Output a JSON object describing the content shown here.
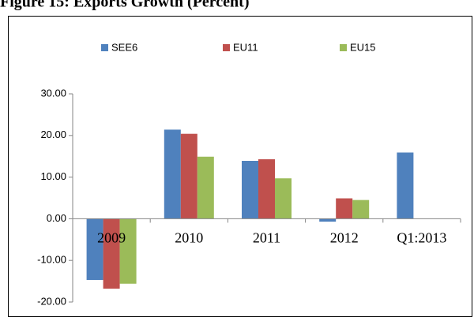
{
  "chart_data": {
    "type": "bar",
    "title": "Figure 15: Exports Growth (Percent)",
    "categories": [
      "2009",
      "2010",
      "2011",
      "2012",
      "Q1:2013"
    ],
    "series": [
      {
        "name": "SEE6",
        "color": "#4f81bd",
        "values": [
          -14.7,
          21.4,
          13.9,
          -0.7,
          15.9
        ]
      },
      {
        "name": "EU11",
        "color": "#c0504d",
        "values": [
          -16.8,
          20.4,
          14.3,
          4.9,
          null
        ]
      },
      {
        "name": "EU15",
        "color": "#9bbb59",
        "values": [
          -15.6,
          14.9,
          9.7,
          4.5,
          null
        ]
      }
    ],
    "ylim": [
      -20,
      30
    ],
    "yticks": [
      {
        "value": -20,
        "label": "-20.00"
      },
      {
        "value": -10,
        "label": "-10.00"
      },
      {
        "value": 0,
        "label": "0.00"
      },
      {
        "value": 10,
        "label": "10.00"
      },
      {
        "value": 20,
        "label": "20.00"
      },
      {
        "value": 30,
        "label": "30.00"
      }
    ],
    "grid": false,
    "legend": "top"
  }
}
